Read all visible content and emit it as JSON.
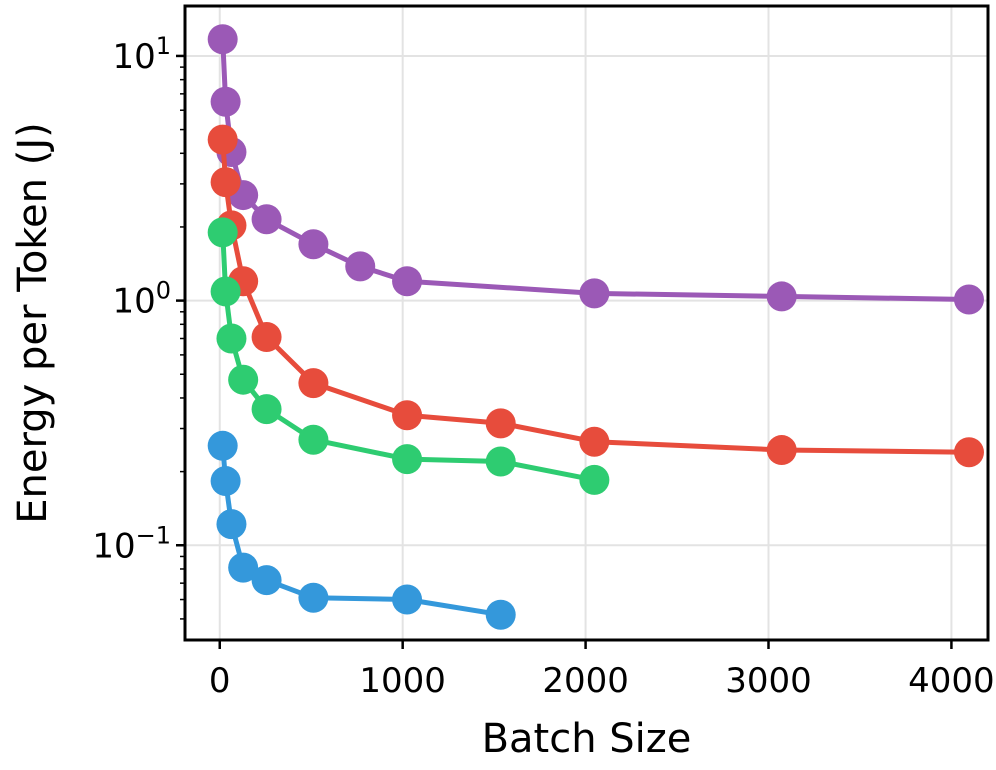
{
  "chart_data": {
    "type": "line",
    "title": "",
    "xlabel": "Batch Size",
    "ylabel": "Energy per Token (J)",
    "yscale": "log",
    "xlim": [
      -190,
      4200
    ],
    "ylim": [
      0.041,
      16
    ],
    "x_ticks": [
      0,
      1000,
      2000,
      3000,
      4000
    ],
    "x_tick_labels": [
      "0",
      "1000",
      "2000",
      "3000",
      "4000"
    ],
    "y_ticks": [
      0.1,
      1,
      10
    ],
    "y_tick_labels": [
      {
        "base": "10",
        "exp": "−1"
      },
      {
        "base": "10",
        "exp": "0"
      },
      {
        "base": "10",
        "exp": "1"
      }
    ],
    "grid": true,
    "legend": "none",
    "series": [
      {
        "name": "purple",
        "color": "#9b59b6",
        "x": [
          16,
          32,
          64,
          128,
          256,
          512,
          768,
          1024,
          2048,
          3072,
          4096
        ],
        "y": [
          11.7,
          6.5,
          4.05,
          2.7,
          2.15,
          1.7,
          1.38,
          1.2,
          1.07,
          1.04,
          1.01
        ]
      },
      {
        "name": "red",
        "color": "#e74c3c",
        "x": [
          16,
          32,
          64,
          128,
          256,
          512,
          1024,
          1536,
          2048,
          3072,
          4096
        ],
        "y": [
          4.55,
          3.05,
          2.03,
          1.2,
          0.71,
          0.46,
          0.34,
          0.315,
          0.265,
          0.245,
          0.24
        ]
      },
      {
        "name": "green",
        "color": "#2ecc71",
        "x": [
          16,
          32,
          64,
          128,
          256,
          512,
          1024,
          1536,
          2048
        ],
        "y": [
          1.9,
          1.09,
          0.7,
          0.475,
          0.36,
          0.27,
          0.225,
          0.22,
          0.185
        ]
      },
      {
        "name": "blue",
        "color": "#3498db",
        "x": [
          16,
          32,
          64,
          128,
          256,
          512,
          1024,
          1536
        ],
        "y": [
          0.255,
          0.183,
          0.122,
          0.081,
          0.072,
          0.061,
          0.06,
          0.052
        ]
      }
    ]
  }
}
